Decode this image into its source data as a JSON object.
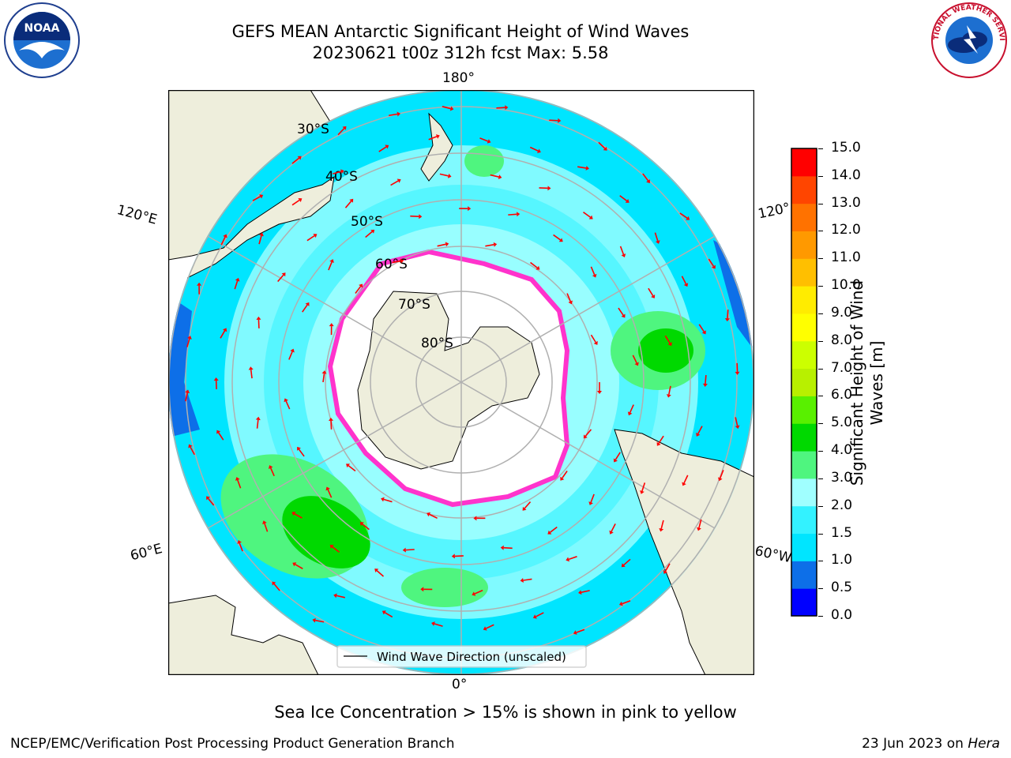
{
  "title": {
    "line1": "GEFS MEAN Antarctic Significant Height of Wind Waves",
    "line2": "20230621 t00z 312h fcst   Max: 5.58"
  },
  "longitude_labels": {
    "top": "180°",
    "bottom": "0°",
    "left_upper": "120°E",
    "left_lower": "60°E",
    "right_upper": "120°",
    "right_lower": "60°W"
  },
  "latitude_labels": [
    "30°S",
    "40°S",
    "50°S",
    "60°S",
    "70°S",
    "80°S"
  ],
  "legend": {
    "label": "Wind Wave Direction (unscaled)"
  },
  "colorbar": {
    "title_line1": "Significant Height of Wind",
    "title_line2": "Waves [m]",
    "ticks": [
      "0.0",
      "0.5",
      "1.0",
      "1.5",
      "2.0",
      "3.0",
      "4.0",
      "5.0",
      "6.0",
      "7.0",
      "8.0",
      "9.0",
      "10.0",
      "11.0",
      "12.0",
      "13.0",
      "14.0",
      "15.0"
    ],
    "colors": [
      "#0000ff",
      "#0d6fe8",
      "#00e5ff",
      "#33f2ff",
      "#a0ffff",
      "#4ff57f",
      "#00d900",
      "#59f000",
      "#b8f000",
      "#ccff00",
      "#ffff00",
      "#ffec00",
      "#ffbf00",
      "#ff9900",
      "#ff7200",
      "#ff4500",
      "#ff0000"
    ]
  },
  "subtitle": "Sea Ice Concentration > 15% is shown in pink to yellow",
  "footer": {
    "left": "NCEP/EMC/Verification Post Processing Product Generation Branch",
    "right_prefix": "23 Jun 2023 on ",
    "right_host": "Hera"
  },
  "logos": {
    "left": "NOAA",
    "right": "NATIONAL WEATHER SERVICE"
  },
  "colors": {
    "land": "#eeeedc",
    "ocean_low": "#00e5ff",
    "ocean_mid": "#a0ffff",
    "ocean_high": "#4ff57f",
    "ice": "#ffffff",
    "ice_edge": "#ff33cc",
    "arrow": "#ff0000",
    "grid": "#b0b0b0"
  }
}
